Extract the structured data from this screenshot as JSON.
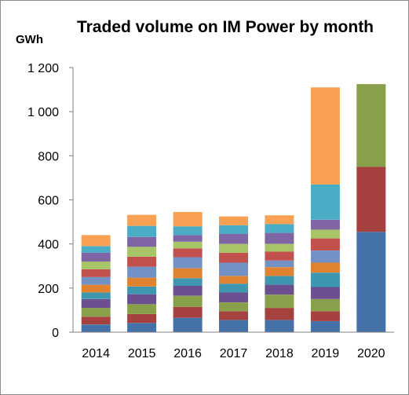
{
  "chart_data": {
    "type": "bar",
    "stacked": true,
    "title": "Traded volume on IM Power by month",
    "ylabel": "GWh",
    "xlabel": "",
    "ylim": [
      0,
      1200
    ],
    "yticks": [
      0,
      200,
      400,
      600,
      800,
      1000,
      1200
    ],
    "ytick_labels": [
      "0",
      "200",
      "400",
      "600",
      "800",
      "1 000",
      "1 200"
    ],
    "grid": false,
    "legend": "none",
    "categories": [
      "2014",
      "2015",
      "2016",
      "2017",
      "2018",
      "2019",
      "2020"
    ],
    "series": [
      {
        "color": "#4472a8",
        "values": [
          35,
          42,
          65,
          55,
          55,
          50,
          455
        ]
      },
      {
        "color": "#a54240",
        "values": [
          35,
          40,
          50,
          40,
          55,
          45,
          295
        ]
      },
      {
        "color": "#88a04a",
        "values": [
          40,
          45,
          50,
          40,
          60,
          55,
          375
        ]
      },
      {
        "color": "#6b4f8f",
        "values": [
          40,
          45,
          45,
          45,
          45,
          55,
          0
        ]
      },
      {
        "color": "#3e97ae",
        "values": [
          30,
          35,
          35,
          40,
          40,
          65,
          0
        ]
      },
      {
        "color": "#e0822f",
        "values": [
          35,
          40,
          45,
          35,
          40,
          45,
          0
        ]
      },
      {
        "color": "#7292c6",
        "values": [
          35,
          50,
          50,
          60,
          30,
          55,
          0
        ]
      },
      {
        "color": "#c2504d",
        "values": [
          35,
          45,
          40,
          45,
          40,
          55,
          0
        ]
      },
      {
        "color": "#a7c466",
        "values": [
          35,
          45,
          30,
          40,
          35,
          40,
          0
        ]
      },
      {
        "color": "#7f65a3",
        "values": [
          40,
          45,
          30,
          45,
          50,
          45,
          0
        ]
      },
      {
        "color": "#4bacc6",
        "values": [
          30,
          50,
          40,
          40,
          40,
          160,
          0
        ]
      },
      {
        "color": "#f8a153",
        "values": [
          50,
          50,
          65,
          40,
          40,
          440,
          0
        ]
      }
    ]
  }
}
